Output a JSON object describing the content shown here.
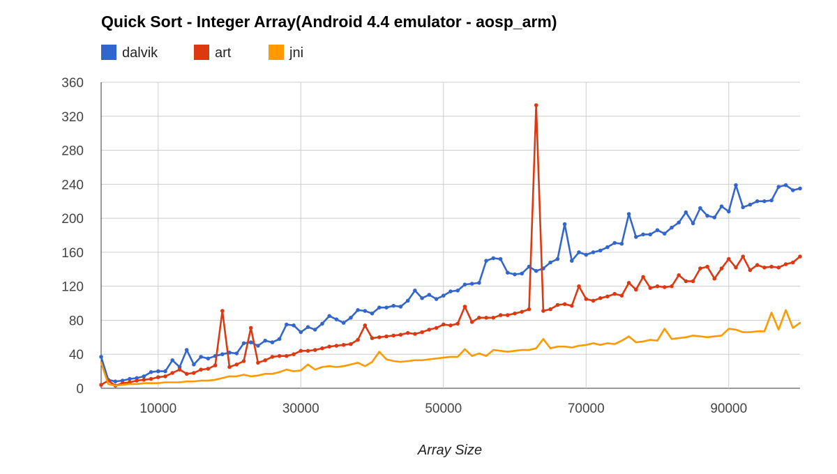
{
  "chart_data": {
    "type": "line",
    "title": "Quick Sort - Integer Array(Android 4.4 emulator - aosp_arm)",
    "xlabel": "Array Size",
    "ylabel": "",
    "xlim": [
      2000,
      100000
    ],
    "ylim": [
      0,
      360
    ],
    "x_ticks": [
      10000,
      30000,
      50000,
      70000,
      90000
    ],
    "y_ticks": [
      0,
      40,
      80,
      120,
      160,
      200,
      240,
      280,
      320,
      360
    ],
    "grid": true,
    "legend": "top-left",
    "series": [
      {
        "name": "dalvik",
        "color": "#3366cc",
        "markers": true,
        "points": [
          [
            2000,
            37
          ],
          [
            3000,
            10
          ],
          [
            4000,
            8
          ],
          [
            5000,
            9
          ],
          [
            6000,
            11
          ],
          [
            7000,
            12
          ],
          [
            8000,
            14
          ],
          [
            9000,
            19
          ],
          [
            10000,
            20
          ],
          [
            11000,
            20
          ],
          [
            12000,
            33
          ],
          [
            13000,
            25
          ],
          [
            14000,
            45
          ],
          [
            15000,
            28
          ],
          [
            16000,
            37
          ],
          [
            17000,
            35
          ],
          [
            18000,
            38
          ],
          [
            19000,
            40
          ],
          [
            20000,
            42
          ],
          [
            21000,
            41
          ],
          [
            22000,
            53
          ],
          [
            23000,
            54
          ],
          [
            24000,
            50
          ],
          [
            25000,
            56
          ],
          [
            26000,
            54
          ],
          [
            27000,
            58
          ],
          [
            28000,
            75
          ],
          [
            29000,
            74
          ],
          [
            30000,
            66
          ],
          [
            31000,
            72
          ],
          [
            32000,
            69
          ],
          [
            33000,
            76
          ],
          [
            34000,
            85
          ],
          [
            35000,
            81
          ],
          [
            36000,
            77
          ],
          [
            37000,
            83
          ],
          [
            38000,
            92
          ],
          [
            39000,
            91
          ],
          [
            40000,
            88
          ],
          [
            41000,
            95
          ],
          [
            42000,
            95
          ],
          [
            43000,
            97
          ],
          [
            44000,
            96
          ],
          [
            45000,
            103
          ],
          [
            46000,
            115
          ],
          [
            47000,
            106
          ],
          [
            48000,
            110
          ],
          [
            49000,
            105
          ],
          [
            50000,
            109
          ],
          [
            51000,
            114
          ],
          [
            52000,
            115
          ],
          [
            53000,
            122
          ],
          [
            54000,
            123
          ],
          [
            55000,
            124
          ],
          [
            56000,
            150
          ],
          [
            57000,
            153
          ],
          [
            58000,
            152
          ],
          [
            59000,
            136
          ],
          [
            60000,
            134
          ],
          [
            61000,
            135
          ],
          [
            62000,
            143
          ],
          [
            63000,
            138
          ],
          [
            64000,
            141
          ],
          [
            65000,
            148
          ],
          [
            66000,
            152
          ],
          [
            67000,
            193
          ],
          [
            68000,
            150
          ],
          [
            69000,
            160
          ],
          [
            70000,
            157
          ],
          [
            71000,
            160
          ],
          [
            72000,
            162
          ],
          [
            73000,
            166
          ],
          [
            74000,
            171
          ],
          [
            75000,
            170
          ],
          [
            76000,
            205
          ],
          [
            77000,
            178
          ],
          [
            78000,
            181
          ],
          [
            79000,
            181
          ],
          [
            80000,
            186
          ],
          [
            81000,
            182
          ],
          [
            82000,
            189
          ],
          [
            83000,
            195
          ],
          [
            84000,
            207
          ],
          [
            85000,
            194
          ],
          [
            86000,
            212
          ],
          [
            87000,
            203
          ],
          [
            88000,
            201
          ],
          [
            89000,
            214
          ],
          [
            90000,
            208
          ],
          [
            91000,
            239
          ],
          [
            92000,
            213
          ],
          [
            93000,
            216
          ],
          [
            94000,
            220
          ],
          [
            95000,
            220
          ],
          [
            96000,
            221
          ],
          [
            97000,
            237
          ],
          [
            98000,
            239
          ],
          [
            99000,
            233
          ],
          [
            100000,
            235
          ]
        ]
      },
      {
        "name": "art",
        "color": "#dc3912",
        "markers": true,
        "points": [
          [
            2000,
            4
          ],
          [
            3000,
            9
          ],
          [
            4000,
            3
          ],
          [
            5000,
            6
          ],
          [
            6000,
            7
          ],
          [
            7000,
            9
          ],
          [
            8000,
            10
          ],
          [
            9000,
            11
          ],
          [
            10000,
            13
          ],
          [
            11000,
            14
          ],
          [
            12000,
            18
          ],
          [
            13000,
            22
          ],
          [
            14000,
            17
          ],
          [
            15000,
            18
          ],
          [
            16000,
            22
          ],
          [
            17000,
            23
          ],
          [
            18000,
            27
          ],
          [
            19000,
            91
          ],
          [
            20000,
            25
          ],
          [
            21000,
            28
          ],
          [
            22000,
            32
          ],
          [
            23000,
            71
          ],
          [
            24000,
            30
          ],
          [
            25000,
            33
          ],
          [
            26000,
            37
          ],
          [
            27000,
            38
          ],
          [
            28000,
            38
          ],
          [
            29000,
            40
          ],
          [
            30000,
            44
          ],
          [
            31000,
            44
          ],
          [
            32000,
            45
          ],
          [
            33000,
            47
          ],
          [
            34000,
            49
          ],
          [
            35000,
            50
          ],
          [
            36000,
            51
          ],
          [
            37000,
            52
          ],
          [
            38000,
            57
          ],
          [
            39000,
            74
          ],
          [
            40000,
            59
          ],
          [
            41000,
            60
          ],
          [
            42000,
            61
          ],
          [
            43000,
            62
          ],
          [
            44000,
            63
          ],
          [
            45000,
            65
          ],
          [
            46000,
            64
          ],
          [
            47000,
            66
          ],
          [
            48000,
            69
          ],
          [
            49000,
            71
          ],
          [
            50000,
            75
          ],
          [
            51000,
            74
          ],
          [
            52000,
            76
          ],
          [
            53000,
            96
          ],
          [
            54000,
            78
          ],
          [
            55000,
            83
          ],
          [
            56000,
            83
          ],
          [
            57000,
            83
          ],
          [
            58000,
            86
          ],
          [
            59000,
            86
          ],
          [
            60000,
            88
          ],
          [
            61000,
            90
          ],
          [
            62000,
            93
          ],
          [
            63000,
            333
          ],
          [
            64000,
            91
          ],
          [
            65000,
            93
          ],
          [
            66000,
            98
          ],
          [
            67000,
            99
          ],
          [
            68000,
            97
          ],
          [
            69000,
            120
          ],
          [
            70000,
            105
          ],
          [
            71000,
            103
          ],
          [
            72000,
            106
          ],
          [
            73000,
            108
          ],
          [
            74000,
            111
          ],
          [
            75000,
            109
          ],
          [
            76000,
            124
          ],
          [
            77000,
            116
          ],
          [
            78000,
            131
          ],
          [
            79000,
            118
          ],
          [
            80000,
            120
          ],
          [
            81000,
            119
          ],
          [
            82000,
            120
          ],
          [
            83000,
            133
          ],
          [
            84000,
            126
          ],
          [
            85000,
            126
          ],
          [
            86000,
            141
          ],
          [
            87000,
            143
          ],
          [
            88000,
            129
          ],
          [
            89000,
            141
          ],
          [
            90000,
            152
          ],
          [
            91000,
            142
          ],
          [
            92000,
            155
          ],
          [
            93000,
            139
          ],
          [
            94000,
            145
          ],
          [
            95000,
            142
          ],
          [
            96000,
            143
          ],
          [
            97000,
            142
          ],
          [
            98000,
            146
          ],
          [
            99000,
            148
          ],
          [
            100000,
            155
          ]
        ]
      },
      {
        "name": "jni",
        "color": "#ff9900",
        "markers": false,
        "points": [
          [
            2000,
            30
          ],
          [
            3000,
            5
          ],
          [
            4000,
            3
          ],
          [
            5000,
            4
          ],
          [
            6000,
            5
          ],
          [
            7000,
            5
          ],
          [
            8000,
            6
          ],
          [
            9000,
            6
          ],
          [
            10000,
            6
          ],
          [
            11000,
            7
          ],
          [
            12000,
            7
          ],
          [
            13000,
            7
          ],
          [
            14000,
            8
          ],
          [
            15000,
            8
          ],
          [
            16000,
            9
          ],
          [
            17000,
            9
          ],
          [
            18000,
            10
          ],
          [
            19000,
            12
          ],
          [
            20000,
            14
          ],
          [
            21000,
            14
          ],
          [
            22000,
            16
          ],
          [
            23000,
            14
          ],
          [
            24000,
            15
          ],
          [
            25000,
            17
          ],
          [
            26000,
            17
          ],
          [
            27000,
            19
          ],
          [
            28000,
            22
          ],
          [
            29000,
            20
          ],
          [
            30000,
            21
          ],
          [
            31000,
            28
          ],
          [
            32000,
            22
          ],
          [
            33000,
            25
          ],
          [
            34000,
            26
          ],
          [
            35000,
            25
          ],
          [
            36000,
            26
          ],
          [
            37000,
            28
          ],
          [
            38000,
            30
          ],
          [
            39000,
            26
          ],
          [
            40000,
            31
          ],
          [
            41000,
            43
          ],
          [
            42000,
            34
          ],
          [
            43000,
            32
          ],
          [
            44000,
            31
          ],
          [
            45000,
            32
          ],
          [
            46000,
            33
          ],
          [
            47000,
            33
          ],
          [
            48000,
            34
          ],
          [
            49000,
            35
          ],
          [
            50000,
            36
          ],
          [
            51000,
            37
          ],
          [
            52000,
            37
          ],
          [
            53000,
            46
          ],
          [
            54000,
            38
          ],
          [
            55000,
            41
          ],
          [
            56000,
            38
          ],
          [
            57000,
            45
          ],
          [
            58000,
            44
          ],
          [
            59000,
            43
          ],
          [
            60000,
            44
          ],
          [
            61000,
            45
          ],
          [
            62000,
            45
          ],
          [
            63000,
            47
          ],
          [
            64000,
            58
          ],
          [
            65000,
            47
          ],
          [
            66000,
            49
          ],
          [
            67000,
            49
          ],
          [
            68000,
            48
          ],
          [
            69000,
            50
          ],
          [
            70000,
            51
          ],
          [
            71000,
            53
          ],
          [
            72000,
            51
          ],
          [
            73000,
            53
          ],
          [
            74000,
            52
          ],
          [
            75000,
            56
          ],
          [
            76000,
            61
          ],
          [
            77000,
            54
          ],
          [
            78000,
            55
          ],
          [
            79000,
            57
          ],
          [
            80000,
            56
          ],
          [
            81000,
            70
          ],
          [
            82000,
            58
          ],
          [
            83000,
            59
          ],
          [
            84000,
            60
          ],
          [
            85000,
            62
          ],
          [
            86000,
            61
          ],
          [
            87000,
            60
          ],
          [
            88000,
            61
          ],
          [
            89000,
            62
          ],
          [
            90000,
            70
          ],
          [
            91000,
            69
          ],
          [
            92000,
            66
          ],
          [
            93000,
            66
          ],
          [
            94000,
            67
          ],
          [
            95000,
            67
          ],
          [
            96000,
            89
          ],
          [
            97000,
            69
          ],
          [
            98000,
            92
          ],
          [
            99000,
            71
          ],
          [
            100000,
            77
          ]
        ]
      }
    ]
  }
}
